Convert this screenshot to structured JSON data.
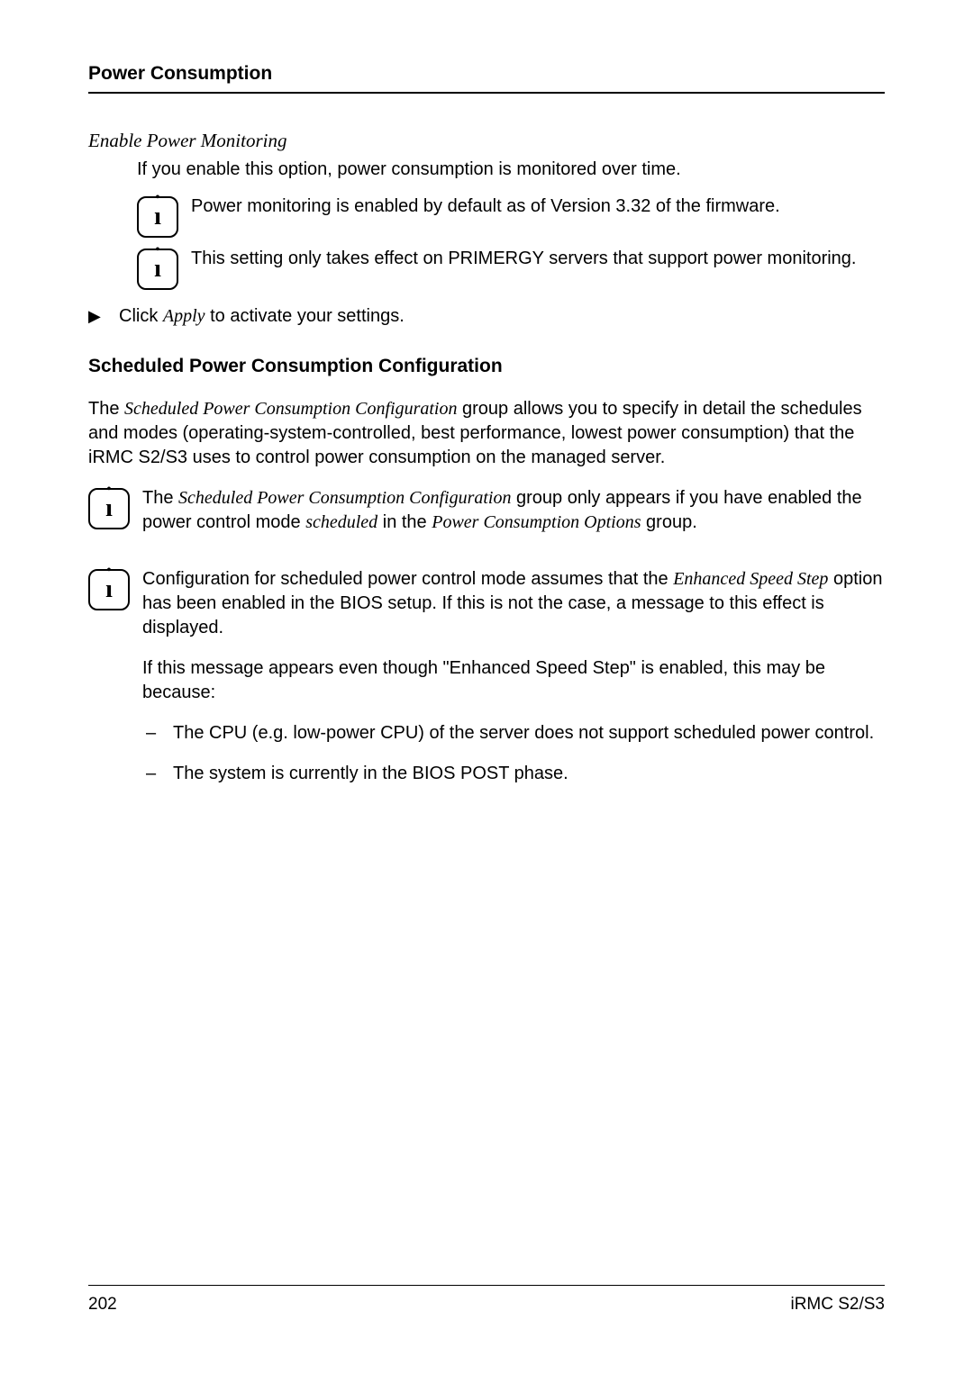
{
  "header": {
    "runningTitle": "Power Consumption"
  },
  "section1": {
    "heading": "Enable Power Monitoring",
    "intro": "If you enable this option, power consumption is monitored over time.",
    "note1": "Power monitoring is enabled by default as of Version 3.32 of the firmware.",
    "note2": "This setting only takes effect on PRIMERGY servers that support power monitoring.",
    "action_prefix": "Click ",
    "action_apply": "Apply",
    "action_suffix": " to activate your settings.",
    "arrowGlyph": "▶"
  },
  "section2": {
    "heading": "Scheduled Power Consumption Configuration",
    "para_pre": "The ",
    "para_term": "Scheduled Power Consumption Configuration",
    "para_post": " group allows you to specify in detail the schedules and modes (operating-system-controlled, best performance, lowest power consumption) that the iRMC S2/S3 uses to control power consumption on the managed server.",
    "note3_pre": "The ",
    "note3_term1": "Scheduled Power Consumption Configuration",
    "note3_mid": " group only appears if you have enabled the power control mode ",
    "note3_term2": "scheduled",
    "note3_mid2": " in the ",
    "note3_term3": "Power Consumption Options",
    "note3_end": " group.",
    "note4_pre": "Configuration for scheduled power control mode assumes that the ",
    "note4_term": "Enhanced Speed Step",
    "note4_post": " option has been enabled in the BIOS setup. If this is not the case, a message to this effect is displayed.",
    "note4_p2": "If this message appears even though \"Enhanced Speed Step\" is enabled, this may be because:",
    "note4_li1": "The CPU (e.g. low-power CPU) of the server does not support scheduled power control.",
    "note4_li2": "The system is currently in the BIOS POST phase."
  },
  "footer": {
    "pageNumber": "202",
    "docRef": "iRMC S2/S3"
  },
  "icons": {
    "infoGlyph": "ı"
  }
}
